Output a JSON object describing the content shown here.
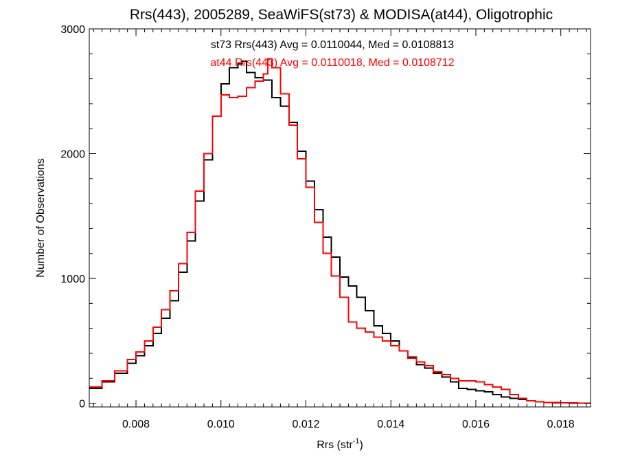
{
  "chart_data": {
    "type": "line",
    "title": "Rrs(443), 2005289, SeaWiFS(st73) & MODISA(at44), Oligotrophic",
    "xlabel_main": "Rrs (str",
    "xlabel_sup": "-1",
    "xlabel_close": ")",
    "ylabel": "Number of Observations",
    "xlim": [
      0.0069,
      0.0187
    ],
    "ylim": [
      -30,
      3000
    ],
    "xticks": [
      0.008,
      0.01,
      0.012,
      0.014,
      0.016,
      0.018
    ],
    "xtick_labels": [
      "0.008",
      "0.010",
      "0.012",
      "0.014",
      "0.016",
      "0.018"
    ],
    "yticks": [
      0,
      1000,
      2000,
      3000
    ],
    "ytick_labels": [
      "0",
      "1000",
      "2000",
      "3000"
    ],
    "annotations": [
      {
        "text": "st73 Rrs(443) Avg = 0.0110044, Med = 0.0108813",
        "color": "#000000"
      },
      {
        "text": "at44 Rrs(443) Avg = 0.0110018, Med = 0.0108712",
        "color": "#ff0000"
      }
    ],
    "series": [
      {
        "color": "#000000",
        "x": [
          0.0069,
          0.0072,
          0.0075,
          0.0078,
          0.008,
          0.0082,
          0.0084,
          0.0086,
          0.0088,
          0.009,
          0.0092,
          0.0094,
          0.0096,
          0.0098,
          0.01,
          0.0102,
          0.0104,
          0.0105,
          0.0106,
          0.0108,
          0.011,
          0.0112,
          0.0114,
          0.0116,
          0.0118,
          0.012,
          0.0122,
          0.0124,
          0.0126,
          0.0128,
          0.013,
          0.0132,
          0.0134,
          0.0136,
          0.0138,
          0.014,
          0.0142,
          0.0144,
          0.0146,
          0.0148,
          0.015,
          0.0152,
          0.0154,
          0.0156,
          0.0158,
          0.016,
          0.0162,
          0.0164,
          0.0166,
          0.0168,
          0.017,
          0.0172,
          0.0174,
          0.0176,
          0.0178,
          0.018,
          0.0182,
          0.0184,
          0.0187
        ],
        "y": [
          120,
          170,
          240,
          320,
          380,
          460,
          560,
          680,
          820,
          1050,
          1300,
          1620,
          1950,
          2300,
          2560,
          2690,
          2720,
          2740,
          2650,
          2610,
          2590,
          2450,
          2380,
          2250,
          2020,
          1780,
          1550,
          1330,
          1170,
          1010,
          940,
          850,
          740,
          620,
          560,
          500,
          420,
          370,
          310,
          280,
          240,
          210,
          170,
          120,
          110,
          100,
          90,
          70,
          50,
          40,
          30,
          20,
          10,
          5,
          3,
          2,
          1,
          0,
          0
        ]
      },
      {
        "color": "#ff0000",
        "x": [
          0.0069,
          0.0072,
          0.0075,
          0.0078,
          0.008,
          0.0082,
          0.0084,
          0.0086,
          0.0088,
          0.009,
          0.0092,
          0.0094,
          0.0096,
          0.0098,
          0.01,
          0.0102,
          0.0104,
          0.0106,
          0.0108,
          0.011,
          0.0111,
          0.0112,
          0.0114,
          0.0116,
          0.0118,
          0.012,
          0.0122,
          0.0124,
          0.0126,
          0.0128,
          0.013,
          0.0132,
          0.0134,
          0.0136,
          0.0138,
          0.014,
          0.0142,
          0.0144,
          0.0146,
          0.0148,
          0.015,
          0.0152,
          0.0154,
          0.0156,
          0.0158,
          0.016,
          0.0162,
          0.0164,
          0.0166,
          0.0168,
          0.017,
          0.0172,
          0.0174,
          0.0176,
          0.0178,
          0.018,
          0.0182,
          0.0184,
          0.0187
        ],
        "y": [
          130,
          180,
          260,
          350,
          410,
          500,
          610,
          750,
          900,
          1120,
          1370,
          1700,
          2000,
          2300,
          2470,
          2450,
          2460,
          2530,
          2580,
          2640,
          2760,
          2690,
          2480,
          2230,
          1960,
          1730,
          1450,
          1200,
          1020,
          850,
          650,
          600,
          570,
          530,
          500,
          460,
          420,
          360,
          330,
          300,
          250,
          230,
          200,
          180,
          180,
          170,
          150,
          130,
          110,
          70,
          40,
          20,
          10,
          5,
          5,
          3,
          2,
          1,
          0
        ]
      }
    ]
  }
}
